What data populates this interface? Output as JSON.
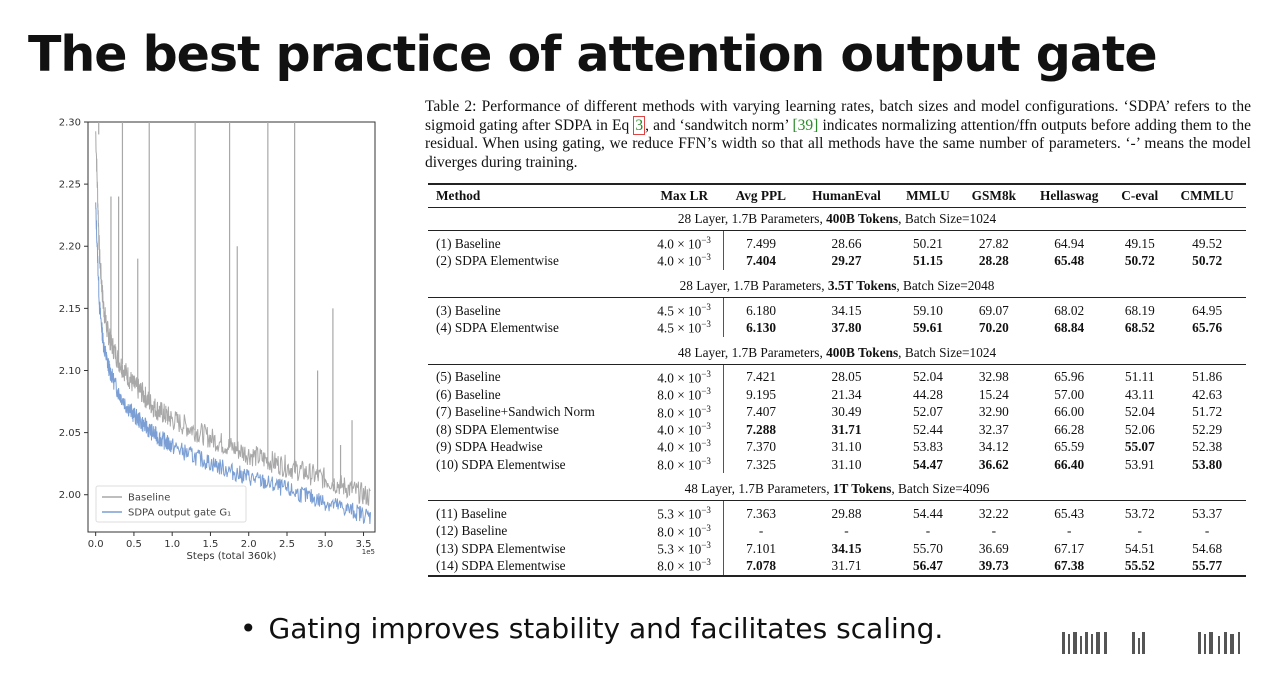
{
  "slide": {
    "title": "The best practice of attention output gate",
    "bullet": "Gating improves stability and facilitates scaling."
  },
  "caption": {
    "part1": "Table 2: Performance of different methods with varying learning rates, batch sizes and model configurations. ‘SDPA’ refers to the sigmoid gating after SDPA in Eq ",
    "eq_ref": "3",
    "part2": ", and ‘sandwitch norm’ ",
    "cite_ref": "[39]",
    "part3": " indicates normalizing attention/ffn outputs before adding them to the residual. When using gating, we reduce FFN’s width so that all methods have the same number of parameters. ‘-’ means the model diverges during training."
  },
  "table": {
    "headers": [
      "Method",
      "Max LR",
      "Avg PPL",
      "HumanEval",
      "MMLU",
      "GSM8k",
      "Hellaswag",
      "C-eval",
      "CMMLU"
    ],
    "groups": [
      {
        "title_pre": "28 Layer, 1.7B Parameters, ",
        "title_bold": "400B Tokens",
        "title_post": ", Batch Size=1024",
        "rows": [
          {
            "method": "(1) Baseline",
            "lr": "4.0 × 10",
            "exp": "−3",
            "vals": [
              "7.499",
              "28.66",
              "50.21",
              "27.82",
              "64.94",
              "49.15",
              "49.52"
            ],
            "bold": []
          },
          {
            "method": "(2) SDPA Elementwise",
            "lr": "4.0 × 10",
            "exp": "−3",
            "vals": [
              "7.404",
              "29.27",
              "51.15",
              "28.28",
              "65.48",
              "50.72",
              "50.72"
            ],
            "bold": [
              0,
              1,
              2,
              3,
              4,
              5,
              6
            ]
          }
        ]
      },
      {
        "title_pre": "28 Layer, 1.7B Parameters, ",
        "title_bold": "3.5T Tokens",
        "title_post": ", Batch Size=2048",
        "rows": [
          {
            "method": "(3) Baseline",
            "lr": "4.5 × 10",
            "exp": "−3",
            "vals": [
              "6.180",
              "34.15",
              "59.10",
              "69.07",
              "68.02",
              "68.19",
              "64.95"
            ],
            "bold": []
          },
          {
            "method": "(4) SDPA Elementwise",
            "lr": "4.5 × 10",
            "exp": "−3",
            "vals": [
              "6.130",
              "37.80",
              "59.61",
              "70.20",
              "68.84",
              "68.52",
              "65.76"
            ],
            "bold": [
              0,
              1,
              2,
              3,
              4,
              5,
              6
            ]
          }
        ]
      },
      {
        "title_pre": "48 Layer, 1.7B Parameters, ",
        "title_bold": "400B Tokens",
        "title_post": ", Batch Size=1024",
        "rows": [
          {
            "method": "(5) Baseline",
            "lr": "4.0 × 10",
            "exp": "−3",
            "vals": [
              "7.421",
              "28.05",
              "52.04",
              "32.98",
              "65.96",
              "51.11",
              "51.86"
            ],
            "bold": []
          },
          {
            "method": "(6) Baseline",
            "lr": "8.0 × 10",
            "exp": "−3",
            "vals": [
              "9.195",
              "21.34",
              "44.28",
              "15.24",
              "57.00",
              "43.11",
              "42.63"
            ],
            "bold": []
          },
          {
            "method": "(7) Baseline+Sandwich Norm",
            "lr": "8.0 × 10",
            "exp": "−3",
            "vals": [
              "7.407",
              "30.49",
              "52.07",
              "32.90",
              "66.00",
              "52.04",
              "51.72"
            ],
            "bold": []
          },
          {
            "method": "(8) SDPA Elementwise",
            "lr": "4.0 × 10",
            "exp": "−3",
            "vals": [
              "7.288",
              "31.71",
              "52.44",
              "32.37",
              "66.28",
              "52.06",
              "52.29"
            ],
            "bold": [
              0,
              1
            ]
          },
          {
            "method": "(9) SDPA Headwise",
            "lr": "4.0 × 10",
            "exp": "−3",
            "vals": [
              "7.370",
              "31.10",
              "53.83",
              "34.12",
              "65.59",
              "55.07",
              "52.38"
            ],
            "bold": [
              5
            ]
          },
          {
            "method": "(10) SDPA Elementwise",
            "lr": "8.0 × 10",
            "exp": "−3",
            "vals": [
              "7.325",
              "31.10",
              "54.47",
              "36.62",
              "66.40",
              "53.91",
              "53.80"
            ],
            "bold": [
              2,
              3,
              4,
              6
            ]
          }
        ]
      },
      {
        "title_pre": "48 Layer, 1.7B Parameters, ",
        "title_bold": "1T Tokens",
        "title_post": ", Batch Size=4096",
        "rows": [
          {
            "method": "(11) Baseline",
            "lr": "5.3 × 10",
            "exp": "−3",
            "vals": [
              "7.363",
              "29.88",
              "54.44",
              "32.22",
              "65.43",
              "53.72",
              "53.37"
            ],
            "bold": []
          },
          {
            "method": "(12) Baseline",
            "lr": "8.0 × 10",
            "exp": "−3",
            "vals": [
              "-",
              "-",
              "-",
              "-",
              "-",
              "-",
              "-"
            ],
            "bold": []
          },
          {
            "method": "(13) SDPA Elementwise",
            "lr": "5.3 × 10",
            "exp": "−3",
            "vals": [
              "7.101",
              "34.15",
              "55.70",
              "36.69",
              "67.17",
              "54.51",
              "54.68"
            ],
            "bold": [
              1
            ]
          },
          {
            "method": "(14) SDPA Elementwise",
            "lr": "8.0 × 10",
            "exp": "−3",
            "vals": [
              "7.078",
              "31.71",
              "56.47",
              "39.73",
              "67.38",
              "55.52",
              "55.77"
            ],
            "bold": [
              0,
              2,
              3,
              4,
              5,
              6
            ]
          }
        ]
      }
    ]
  },
  "chart_data": {
    "type": "line",
    "title": "",
    "xlabel": "Steps (total 360k)",
    "x_exponent_label": "1e5",
    "ylabel": "",
    "xlim": [
      -0.1,
      3.65
    ],
    "ylim": [
      1.97,
      2.3
    ],
    "x_ticks": [
      "0.0",
      "0.5",
      "1.0",
      "1.5",
      "2.0",
      "2.5",
      "3.0",
      "3.5"
    ],
    "x_tick_values": [
      0,
      0.5,
      1.0,
      1.5,
      2.0,
      2.5,
      3.0,
      3.5
    ],
    "y_ticks": [
      "2.00",
      "2.05",
      "2.10",
      "2.15",
      "2.20",
      "2.25",
      "2.30"
    ],
    "y_tick_values": [
      2.0,
      2.05,
      2.1,
      2.15,
      2.2,
      2.25,
      2.3
    ],
    "legend": [
      "Baseline",
      "SDPA output gate G₁"
    ],
    "legend_position": "bottom-left",
    "series": [
      {
        "name": "Baseline",
        "color": "#a8a8a8",
        "x": [
          0.0,
          0.05,
          0.1,
          0.15,
          0.2,
          0.3,
          0.4,
          0.5,
          0.6,
          0.7,
          0.8,
          0.9,
          1.0,
          1.2,
          1.4,
          1.6,
          1.8,
          2.0,
          2.2,
          2.4,
          2.6,
          2.8,
          3.0,
          3.2,
          3.4,
          3.6
        ],
        "values": [
          2.29,
          2.19,
          2.15,
          2.13,
          2.12,
          2.105,
          2.095,
          2.085,
          2.08,
          2.072,
          2.066,
          2.062,
          2.058,
          2.052,
          2.046,
          2.04,
          2.035,
          2.03,
          2.026,
          2.022,
          2.018,
          2.014,
          2.01,
          2.005,
          2.0,
          1.995
        ],
        "spikes": [
          {
            "x": 0.04,
            "y": 2.3
          },
          {
            "x": 0.2,
            "y": 2.24
          },
          {
            "x": 0.3,
            "y": 2.24
          },
          {
            "x": 0.35,
            "y": 2.3
          },
          {
            "x": 0.55,
            "y": 2.19
          },
          {
            "x": 0.7,
            "y": 2.3
          },
          {
            "x": 1.3,
            "y": 2.3
          },
          {
            "x": 1.75,
            "y": 2.3
          },
          {
            "x": 1.85,
            "y": 2.2
          },
          {
            "x": 2.25,
            "y": 2.3
          },
          {
            "x": 2.6,
            "y": 2.3
          },
          {
            "x": 2.9,
            "y": 2.1
          },
          {
            "x": 3.1,
            "y": 2.15
          },
          {
            "x": 3.2,
            "y": 2.04
          },
          {
            "x": 3.35,
            "y": 2.06
          }
        ]
      },
      {
        "name": "SDPA output gate G₁",
        "color": "#7b9fd4",
        "x": [
          0.0,
          0.05,
          0.1,
          0.15,
          0.2,
          0.3,
          0.4,
          0.5,
          0.6,
          0.7,
          0.8,
          0.9,
          1.0,
          1.2,
          1.4,
          1.6,
          1.8,
          2.0,
          2.2,
          2.4,
          2.6,
          2.8,
          3.0,
          3.2,
          3.4,
          3.6
        ],
        "values": [
          2.23,
          2.15,
          2.12,
          2.105,
          2.095,
          2.08,
          2.07,
          2.062,
          2.056,
          2.05,
          2.045,
          2.041,
          2.037,
          2.031,
          2.026,
          2.021,
          2.016,
          2.012,
          2.008,
          2.004,
          2.0,
          1.996,
          1.992,
          1.988,
          1.984,
          1.98
        ]
      }
    ]
  }
}
